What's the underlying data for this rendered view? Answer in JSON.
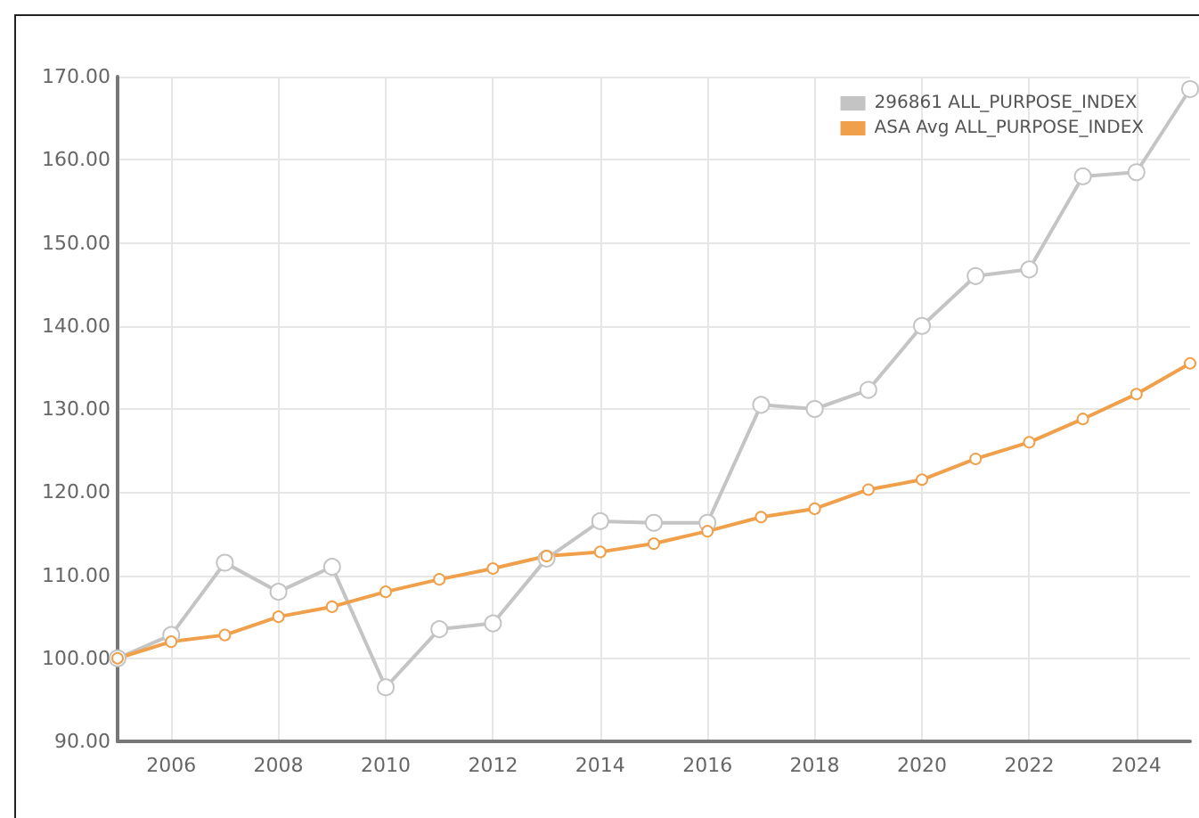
{
  "chart_data": {
    "type": "line",
    "x": [
      2005,
      2006,
      2007,
      2008,
      2009,
      2010,
      2011,
      2012,
      2013,
      2014,
      2015,
      2016,
      2017,
      2018,
      2019,
      2020,
      2021,
      2022,
      2023,
      2024,
      2025
    ],
    "series": [
      {
        "name": "296861 ALL_PURPOSE_INDEX",
        "color": "#c4c4c4",
        "values": [
          100,
          102.8,
          111.5,
          108,
          111,
          96.5,
          103.5,
          104.2,
          112,
          116.5,
          116.3,
          116.3,
          130.5,
          130,
          132.3,
          140,
          146,
          146.8,
          158,
          158.5,
          168.5
        ]
      },
      {
        "name": "ASA Avg ALL_PURPOSE_INDEX",
        "color": "#f0a04b",
        "values": [
          100,
          102,
          102.8,
          105,
          106.2,
          108,
          109.5,
          110.8,
          112.3,
          112.8,
          113.8,
          115.3,
          117,
          118,
          120.3,
          121.5,
          124,
          126,
          128.8,
          131.8,
          135.5
        ]
      }
    ],
    "xlim": [
      2005,
      2025
    ],
    "xticks": [
      2006,
      2008,
      2010,
      2012,
      2014,
      2016,
      2018,
      2020,
      2022,
      2024
    ],
    "ylim": [
      90,
      170
    ],
    "yticks": [
      {
        "value": 90,
        "label": "90.00"
      },
      {
        "value": 100,
        "label": "100.00"
      },
      {
        "value": 110,
        "label": "110.00"
      },
      {
        "value": 120,
        "label": "120.00"
      },
      {
        "value": 130,
        "label": "130.00"
      },
      {
        "value": 140,
        "label": "140.00"
      },
      {
        "value": 150,
        "label": "150.00"
      },
      {
        "value": 160,
        "label": "160.00"
      },
      {
        "value": 170,
        "label": "170.00"
      }
    ],
    "grid": true,
    "legend": "top right",
    "marker": "circle",
    "line_style": "solid"
  }
}
